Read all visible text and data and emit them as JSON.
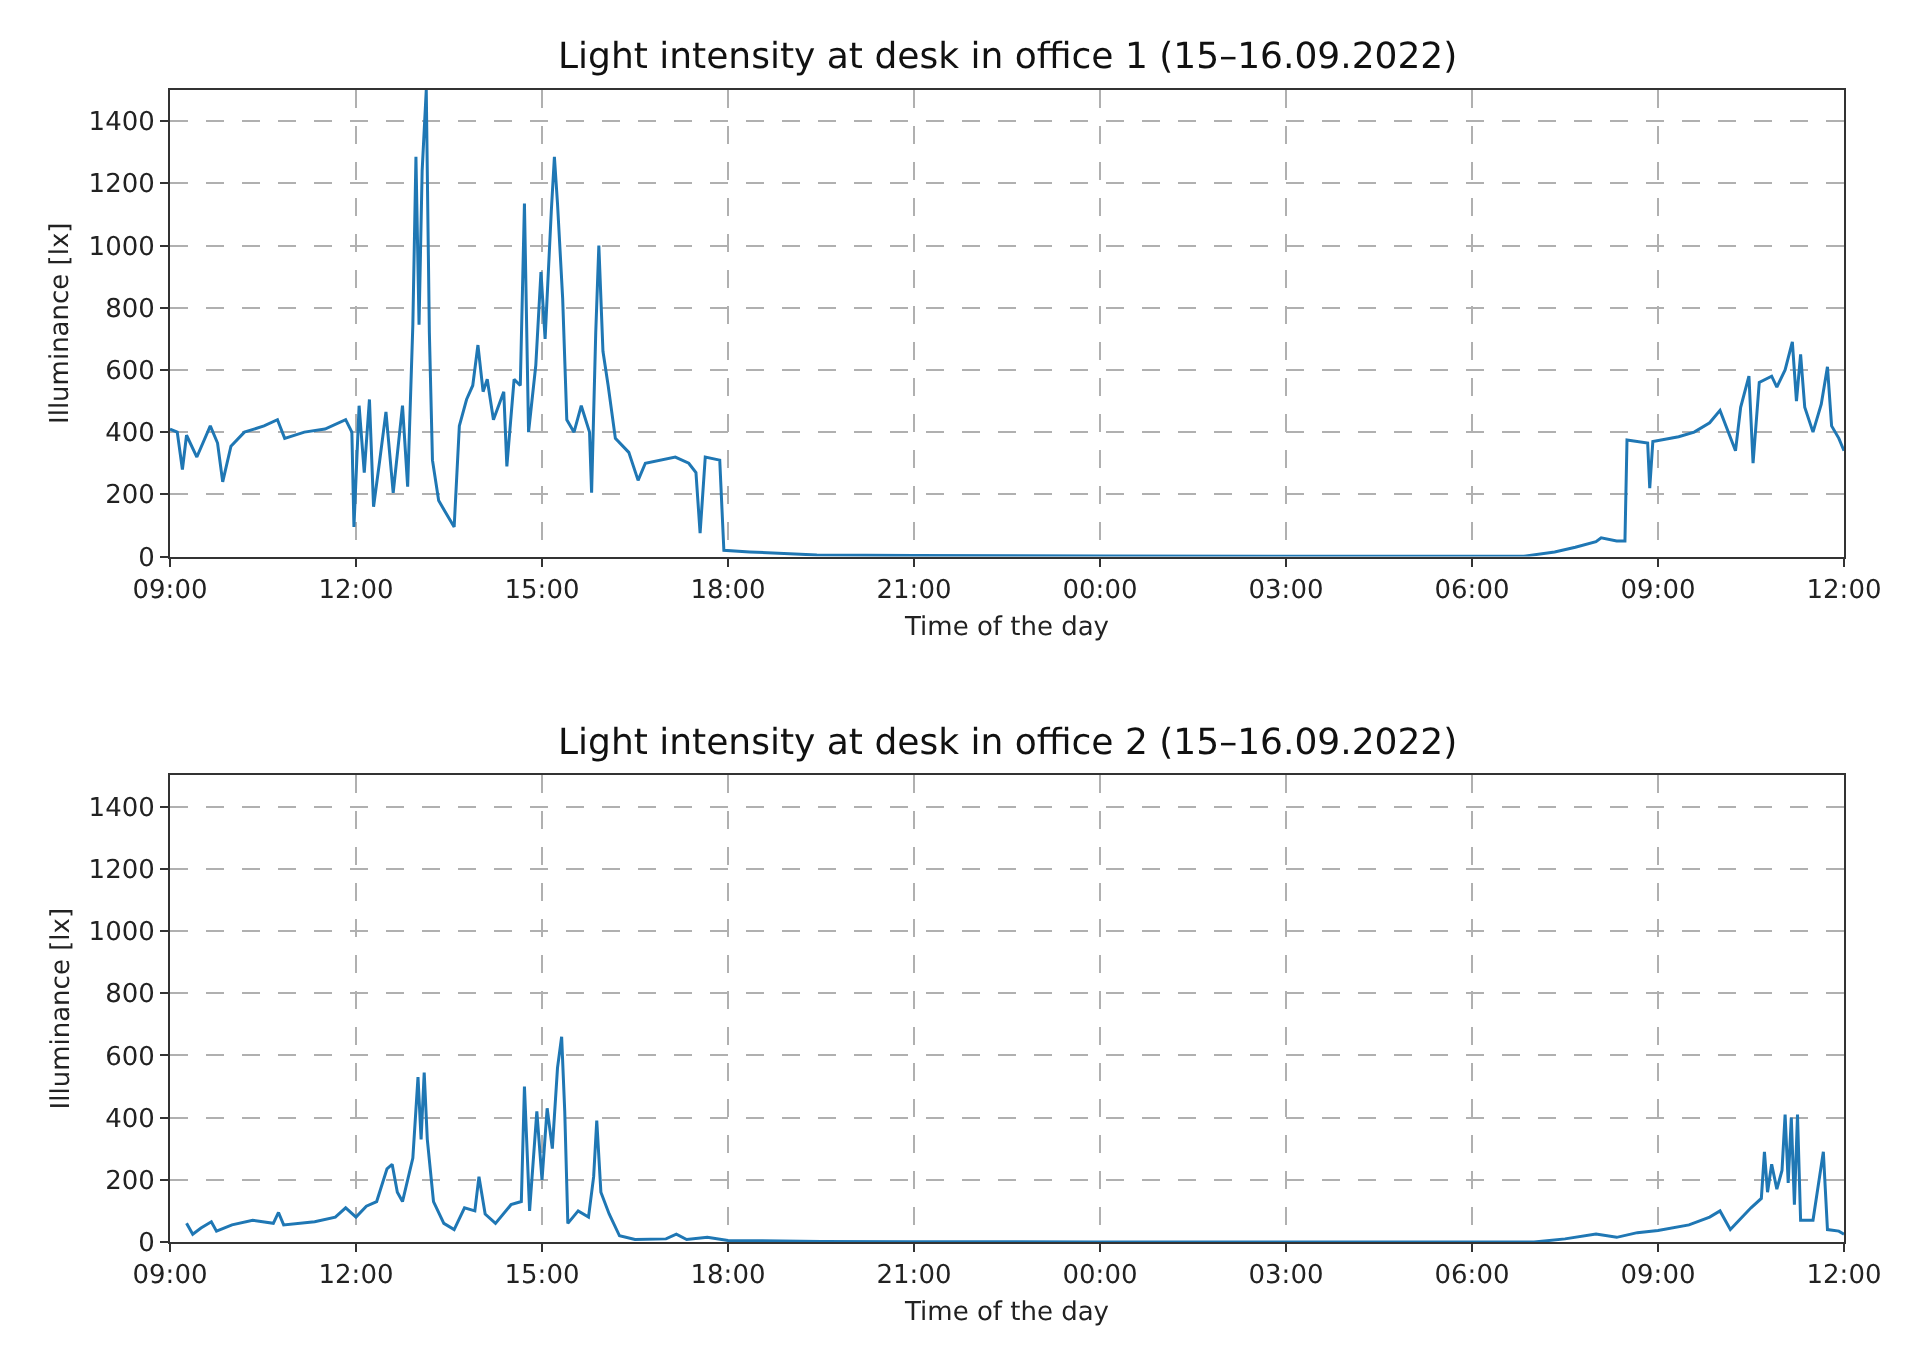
{
  "chart_data": [
    {
      "type": "line",
      "title": "Light intensity at desk in office 1 (15–16.09.2022)",
      "xlabel": "Time of the day",
      "ylabel": "Illuminance [lx]",
      "color": "#1f77b4",
      "grid": true,
      "xlim": [
        "2022-09-15T09:00",
        "2022-09-16T12:00"
      ],
      "xticks": [
        {
          "value": "2022-09-15T09:00",
          "label": "09:00"
        },
        {
          "value": "2022-09-15T12:00",
          "label": "12:00"
        },
        {
          "value": "2022-09-15T15:00",
          "label": "15:00"
        },
        {
          "value": "2022-09-15T18:00",
          "label": "18:00"
        },
        {
          "value": "2022-09-15T21:00",
          "label": "21:00"
        },
        {
          "value": "2022-09-16T00:00",
          "label": "00:00"
        },
        {
          "value": "2022-09-16T03:00",
          "label": "03:00"
        },
        {
          "value": "2022-09-16T06:00",
          "label": "06:00"
        },
        {
          "value": "2022-09-16T09:00",
          "label": "09:00"
        },
        {
          "value": "2022-09-16T12:00",
          "label": "12:00"
        }
      ],
      "ylim": [
        0,
        1500
      ],
      "yticks": [
        0,
        200,
        400,
        600,
        800,
        1000,
        1200,
        1400
      ],
      "x": [
        "2022-09-15T09:00",
        "2022-09-15T09:07",
        "2022-09-15T09:12",
        "2022-09-15T09:16",
        "2022-09-15T09:26",
        "2022-09-15T09:39",
        "2022-09-15T09:46",
        "2022-09-15T09:51",
        "2022-09-15T09:59",
        "2022-09-15T10:12",
        "2022-09-15T10:31",
        "2022-09-15T10:44",
        "2022-09-15T10:51",
        "2022-09-15T11:10",
        "2022-09-15T11:30",
        "2022-09-15T11:50",
        "2022-09-15T11:56",
        "2022-09-15T11:58",
        "2022-09-15T12:03",
        "2022-09-15T12:08",
        "2022-09-15T12:13",
        "2022-09-15T12:17",
        "2022-09-15T12:23",
        "2022-09-15T12:29",
        "2022-09-15T12:36",
        "2022-09-15T12:45",
        "2022-09-15T12:50",
        "2022-09-15T12:55",
        "2022-09-15T12:58",
        "2022-09-15T13:01",
        "2022-09-15T13:04",
        "2022-09-15T13:08",
        "2022-09-15T13:11",
        "2022-09-15T13:14",
        "2022-09-15T13:20",
        "2022-09-15T13:27",
        "2022-09-15T13:35",
        "2022-09-15T13:40",
        "2022-09-15T13:47",
        "2022-09-15T13:53",
        "2022-09-15T13:58",
        "2022-09-15T14:03",
        "2022-09-15T14:07",
        "2022-09-15T14:13",
        "2022-09-15T14:23",
        "2022-09-15T14:26",
        "2022-09-15T14:33",
        "2022-09-15T14:39",
        "2022-09-15T14:43",
        "2022-09-15T14:47",
        "2022-09-15T14:54",
        "2022-09-15T14:59",
        "2022-09-15T15:03",
        "2022-09-15T15:09",
        "2022-09-15T15:12",
        "2022-09-15T15:15",
        "2022-09-15T15:20",
        "2022-09-15T15:24",
        "2022-09-15T15:31",
        "2022-09-15T15:38",
        "2022-09-15T15:46",
        "2022-09-15T15:48",
        "2022-09-15T15:52",
        "2022-09-15T15:55",
        "2022-09-15T15:59",
        "2022-09-15T16:04",
        "2022-09-15T16:11",
        "2022-09-15T16:24",
        "2022-09-15T16:33",
        "2022-09-15T16:40",
        "2022-09-15T17:09",
        "2022-09-15T17:22",
        "2022-09-15T17:29",
        "2022-09-15T17:33",
        "2022-09-15T17:38",
        "2022-09-15T17:52",
        "2022-09-15T17:56",
        "2022-09-15T18:21",
        "2022-09-15T19:26",
        "2022-09-15T21:00",
        "2022-09-16T00:00",
        "2022-09-16T03:00",
        "2022-09-16T06:00",
        "2022-09-16T06:50",
        "2022-09-16T07:20",
        "2022-09-16T07:40",
        "2022-09-16T08:00",
        "2022-09-16T08:05",
        "2022-09-16T08:20",
        "2022-09-16T08:28",
        "2022-09-16T08:30",
        "2022-09-16T08:50",
        "2022-09-16T08:52",
        "2022-09-16T08:55",
        "2022-09-16T09:20",
        "2022-09-16T09:35",
        "2022-09-16T09:50",
        "2022-09-16T10:00",
        "2022-09-16T10:15",
        "2022-09-16T10:20",
        "2022-09-16T10:28",
        "2022-09-16T10:32",
        "2022-09-16T10:38",
        "2022-09-16T10:50",
        "2022-09-16T10:55",
        "2022-09-16T11:03",
        "2022-09-16T11:10",
        "2022-09-16T11:14",
        "2022-09-16T11:18",
        "2022-09-16T11:22",
        "2022-09-16T11:30",
        "2022-09-16T11:38",
        "2022-09-16T11:44",
        "2022-09-16T11:48",
        "2022-09-16T11:55",
        "2022-09-16T12:00"
      ],
      "values": [
        410,
        400,
        280,
        390,
        320,
        420,
        365,
        240,
        355,
        400,
        420,
        440,
        380,
        400,
        410,
        440,
        400,
        95,
        485,
        270,
        505,
        160,
        310,
        465,
        205,
        485,
        225,
        745,
        1285,
        745,
        1240,
        1500,
        720,
        310,
        180,
        140,
        95,
        420,
        505,
        550,
        680,
        530,
        570,
        440,
        530,
        290,
        570,
        550,
        1135,
        400,
        615,
        915,
        700,
        1110,
        1285,
        1135,
        830,
        440,
        400,
        485,
        400,
        205,
        720,
        1000,
        660,
        550,
        380,
        335,
        245,
        300,
        320,
        300,
        270,
        75,
        320,
        310,
        20,
        15,
        5,
        3,
        2,
        1,
        1,
        1,
        15,
        30,
        48,
        60,
        50,
        50,
        375,
        365,
        220,
        370,
        385,
        400,
        430,
        470,
        340,
        480,
        580,
        300,
        560,
        580,
        545,
        600,
        690,
        500,
        650,
        480,
        400,
        490,
        610,
        420,
        380,
        340
      ]
    },
    {
      "type": "line",
      "title": "Light intensity at desk in office 2 (15–16.09.2022)",
      "xlabel": "Time of the day",
      "ylabel": "Illuminance [lx]",
      "color": "#1f77b4",
      "grid": true,
      "xlim": [
        "2022-09-15T09:00",
        "2022-09-16T12:00"
      ],
      "xticks": [
        {
          "value": "2022-09-15T09:00",
          "label": "09:00"
        },
        {
          "value": "2022-09-15T12:00",
          "label": "12:00"
        },
        {
          "value": "2022-09-15T15:00",
          "label": "15:00"
        },
        {
          "value": "2022-09-15T18:00",
          "label": "18:00"
        },
        {
          "value": "2022-09-15T21:00",
          "label": "21:00"
        },
        {
          "value": "2022-09-16T00:00",
          "label": "00:00"
        },
        {
          "value": "2022-09-16T03:00",
          "label": "03:00"
        },
        {
          "value": "2022-09-16T06:00",
          "label": "06:00"
        },
        {
          "value": "2022-09-16T09:00",
          "label": "09:00"
        },
        {
          "value": "2022-09-16T12:00",
          "label": "12:00"
        }
      ],
      "ylim": [
        0,
        1500
      ],
      "yticks": [
        0,
        200,
        400,
        600,
        800,
        1000,
        1200,
        1400
      ],
      "x": [
        "2022-09-15T09:16",
        "2022-09-15T09:22",
        "2022-09-15T09:30",
        "2022-09-15T09:40",
        "2022-09-15T09:45",
        "2022-09-15T10:00",
        "2022-09-15T10:20",
        "2022-09-15T10:40",
        "2022-09-15T10:45",
        "2022-09-15T10:50",
        "2022-09-15T11:20",
        "2022-09-15T11:40",
        "2022-09-15T11:50",
        "2022-09-15T12:00",
        "2022-09-15T12:10",
        "2022-09-15T12:20",
        "2022-09-15T12:30",
        "2022-09-15T12:35",
        "2022-09-15T12:40",
        "2022-09-15T12:45",
        "2022-09-15T12:55",
        "2022-09-15T13:00",
        "2022-09-15T13:03",
        "2022-09-15T13:06",
        "2022-09-15T13:09",
        "2022-09-15T13:15",
        "2022-09-15T13:25",
        "2022-09-15T13:35",
        "2022-09-15T13:45",
        "2022-09-15T13:55",
        "2022-09-15T13:59",
        "2022-09-15T14:05",
        "2022-09-15T14:15",
        "2022-09-15T14:30",
        "2022-09-15T14:40",
        "2022-09-15T14:43",
        "2022-09-15T14:48",
        "2022-09-15T14:55",
        "2022-09-15T15:00",
        "2022-09-15T15:05",
        "2022-09-15T15:10",
        "2022-09-15T15:15",
        "2022-09-15T15:19",
        "2022-09-15T15:22",
        "2022-09-15T15:25",
        "2022-09-15T15:35",
        "2022-09-15T15:45",
        "2022-09-15T15:50",
        "2022-09-15T15:53",
        "2022-09-15T15:57",
        "2022-09-15T16:05",
        "2022-09-15T16:15",
        "2022-09-15T16:30",
        "2022-09-15T17:00",
        "2022-09-15T17:10",
        "2022-09-15T17:20",
        "2022-09-15T17:40",
        "2022-09-15T18:00",
        "2022-09-15T19:30",
        "2022-09-15T21:00",
        "2022-09-16T00:00",
        "2022-09-16T03:00",
        "2022-09-16T06:00",
        "2022-09-16T07:00",
        "2022-09-16T07:30",
        "2022-09-16T08:00",
        "2022-09-16T08:20",
        "2022-09-16T08:40",
        "2022-09-16T09:00",
        "2022-09-16T09:30",
        "2022-09-16T09:50",
        "2022-09-16T10:00",
        "2022-09-16T10:10",
        "2022-09-16T10:30",
        "2022-09-16T10:40",
        "2022-09-16T10:43",
        "2022-09-16T10:46",
        "2022-09-16T10:50",
        "2022-09-16T10:55",
        "2022-09-16T11:00",
        "2022-09-16T11:03",
        "2022-09-16T11:06",
        "2022-09-16T11:09",
        "2022-09-16T11:12",
        "2022-09-16T11:15",
        "2022-09-16T11:18",
        "2022-09-16T11:30",
        "2022-09-16T11:40",
        "2022-09-16T11:44",
        "2022-09-16T11:55",
        "2022-09-16T12:00"
      ],
      "values": [
        60,
        25,
        45,
        65,
        35,
        55,
        70,
        60,
        95,
        55,
        65,
        80,
        110,
        80,
        115,
        130,
        235,
        250,
        160,
        130,
        270,
        530,
        330,
        545,
        330,
        130,
        60,
        40,
        110,
        100,
        210,
        90,
        60,
        120,
        130,
        500,
        100,
        420,
        200,
        430,
        300,
        560,
        660,
        420,
        60,
        100,
        80,
        210,
        390,
        160,
        90,
        20,
        8,
        10,
        25,
        8,
        15,
        5,
        2,
        1,
        0,
        0,
        0,
        0,
        10,
        26,
        15,
        30,
        37,
        55,
        80,
        100,
        40,
        110,
        140,
        290,
        160,
        250,
        170,
        230,
        410,
        190,
        400,
        120,
        410,
        70,
        70,
        290,
        40,
        35,
        25
      ]
    }
  ]
}
